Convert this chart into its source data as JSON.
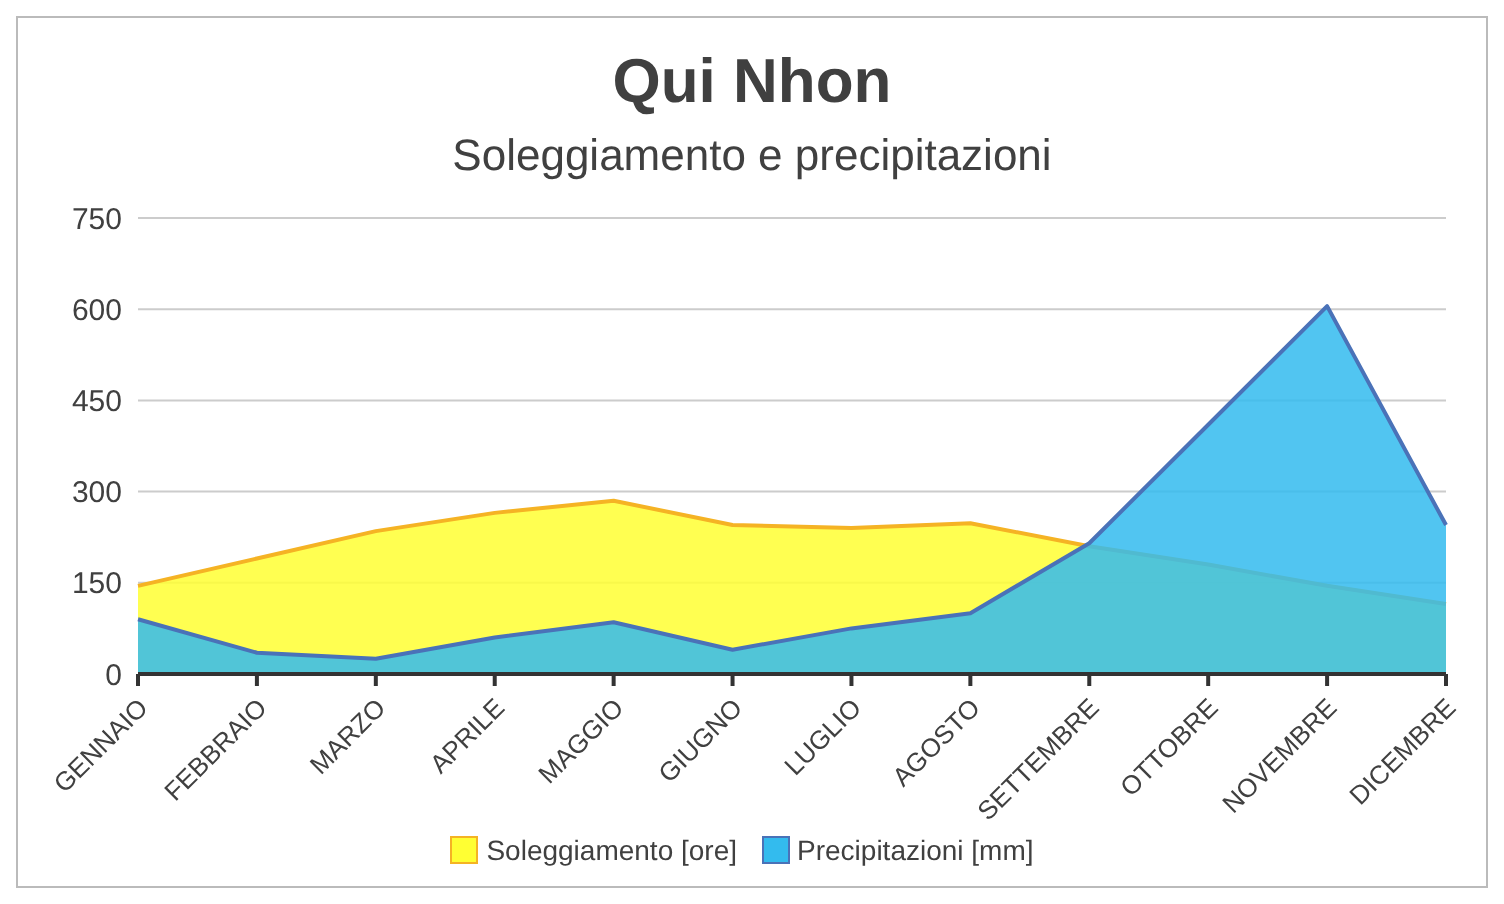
{
  "chart_data": {
    "type": "area",
    "title": "Qui Nhon",
    "subtitle": "Soleggiamento e precipitazioni",
    "categories": [
      "GENNAIO",
      "FEBBRAIO",
      "MARZO",
      "APRILE",
      "MAGGIO",
      "GIUGNO",
      "LUGLIO",
      "AGOSTO",
      "SETTEMBRE",
      "OTTOBRE",
      "NOVEMBRE",
      "DICEMBRE"
    ],
    "series": [
      {
        "name": "Soleggiamento [ore]",
        "color": "#ffff33",
        "values": [
          145,
          190,
          235,
          265,
          285,
          245,
          240,
          248,
          210,
          180,
          145,
          115
        ]
      },
      {
        "name": "Precipitazioni [mm]",
        "color": "#33bbee",
        "values": [
          90,
          35,
          25,
          60,
          85,
          40,
          75,
          100,
          215,
          410,
          605,
          245
        ]
      }
    ],
    "ylim": [
      0,
      750
    ],
    "yticks": [
      0,
      150,
      300,
      450,
      600,
      750
    ],
    "grid": "y",
    "legend": "bottom"
  }
}
